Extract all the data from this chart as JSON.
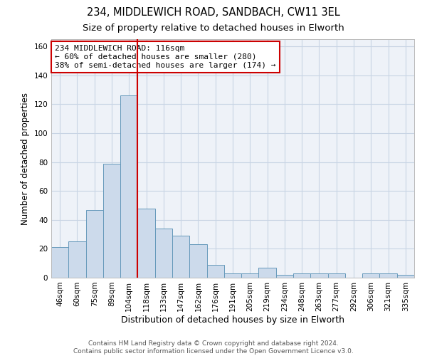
{
  "title1": "234, MIDDLEWICH ROAD, SANDBACH, CW11 3EL",
  "title2": "Size of property relative to detached houses in Elworth",
  "xlabel": "Distribution of detached houses by size in Elworth",
  "ylabel": "Number of detached properties",
  "categories": [
    "46sqm",
    "60sqm",
    "75sqm",
    "89sqm",
    "104sqm",
    "118sqm",
    "133sqm",
    "147sqm",
    "162sqm",
    "176sqm",
    "191sqm",
    "205sqm",
    "219sqm",
    "234sqm",
    "248sqm",
    "263sqm",
    "277sqm",
    "292sqm",
    "306sqm",
    "321sqm",
    "335sqm"
  ],
  "values": [
    21,
    25,
    47,
    79,
    126,
    48,
    34,
    29,
    23,
    9,
    3,
    3,
    7,
    2,
    3,
    3,
    3,
    0,
    3,
    3,
    2
  ],
  "bar_color": "#ccdaeb",
  "bar_edge_color": "#6699bb",
  "bar_edge_width": 0.7,
  "grid_color": "#c8d4e4",
  "background_color": "#eef2f8",
  "red_line_x": 5,
  "red_line_color": "#cc0000",
  "annotation_line1": "234 MIDDLEWICH ROAD: 116sqm",
  "annotation_line2": "← 60% of detached houses are smaller (280)",
  "annotation_line3": "38% of semi-detached houses are larger (174) →",
  "annotation_box_color": "#ffffff",
  "annotation_box_edge_color": "#cc0000",
  "ylim": [
    0,
    165
  ],
  "yticks": [
    0,
    20,
    40,
    60,
    80,
    100,
    120,
    140,
    160
  ],
  "footer1": "Contains HM Land Registry data © Crown copyright and database right 2024.",
  "footer2": "Contains public sector information licensed under the Open Government Licence v3.0.",
  "title1_fontsize": 10.5,
  "title2_fontsize": 9.5,
  "xlabel_fontsize": 9,
  "ylabel_fontsize": 8.5,
  "tick_fontsize": 7.5,
  "annotation_fontsize": 8,
  "footer_fontsize": 6.5
}
